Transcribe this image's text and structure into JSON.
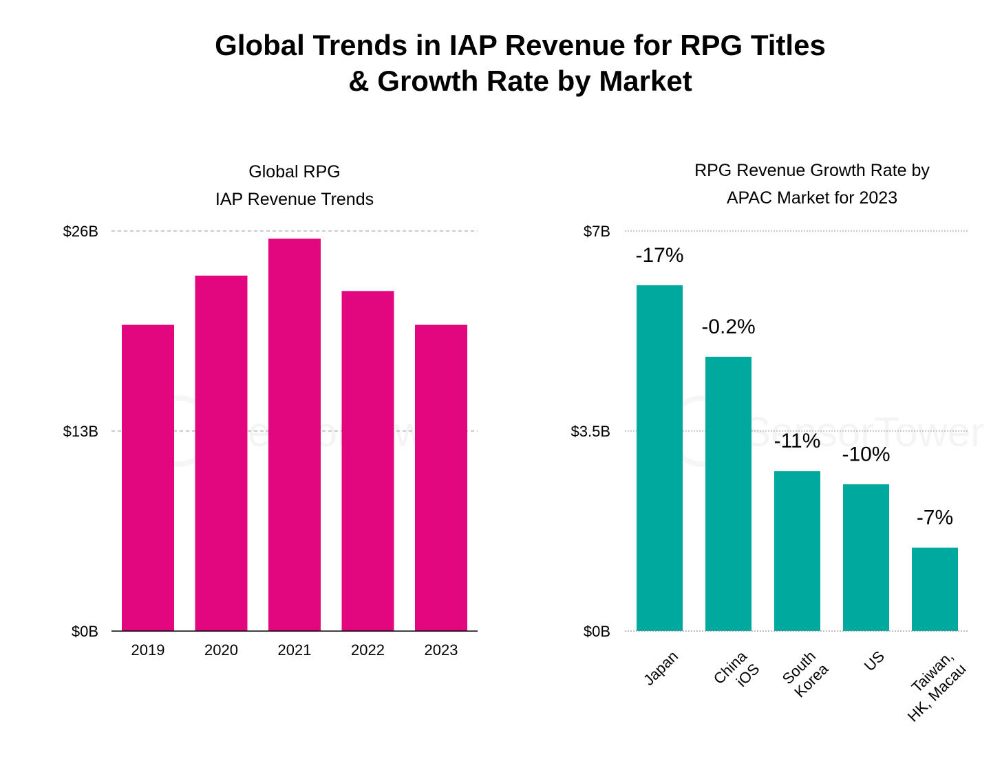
{
  "title_lines": [
    "Global Trends in IAP Revenue for RPG Titles",
    "& Growth Rate by Market"
  ],
  "watermark": "SensorTower",
  "chart_data": [
    {
      "type": "bar",
      "title_lines": [
        "Global RPG",
        "IAP Revenue Trends"
      ],
      "categories": [
        "2019",
        "2020",
        "2021",
        "2022",
        "2023"
      ],
      "values": [
        19.9,
        23.1,
        25.5,
        22.1,
        19.9
      ],
      "yticks": [
        0,
        13,
        26
      ],
      "ytick_labels": [
        "$0B",
        "$13B",
        "$26B"
      ],
      "ylim": [
        0,
        26
      ],
      "xlabel": "",
      "ylabel": "",
      "color": "#E3077F",
      "grid": true
    },
    {
      "type": "bar",
      "title_lines": [
        "RPG Revenue Growth Rate by",
        "APAC Market for 2023"
      ],
      "categories": [
        [
          "Japan"
        ],
        [
          "China",
          "iOS"
        ],
        [
          "South",
          "Korea"
        ],
        [
          "US"
        ],
        [
          "Taiwan,",
          "HK, Macau"
        ]
      ],
      "values": [
        6.05,
        4.8,
        2.8,
        2.57,
        1.46
      ],
      "data_labels": [
        "-17%",
        "-0.2%",
        "-11%",
        "-10%",
        "-7%"
      ],
      "yticks": [
        0,
        3.5,
        7
      ],
      "ytick_labels": [
        "$0B",
        "$3.5B",
        "$7B"
      ],
      "ylim": [
        0,
        7
      ],
      "xlabel": "",
      "ylabel": "",
      "color": "#00A99D",
      "grid": true
    }
  ]
}
